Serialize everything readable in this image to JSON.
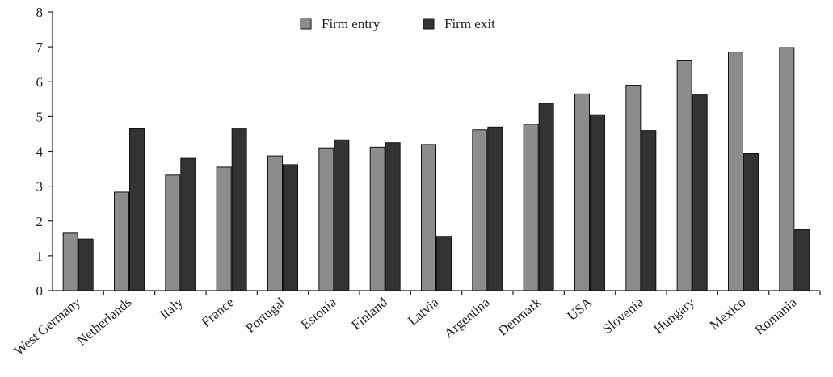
{
  "chart_data": {
    "type": "bar",
    "categories": [
      "West Germany",
      "Netherlands",
      "Italy",
      "France",
      "Portugal",
      "Estonia",
      "Finland",
      "Latvia",
      "Argentina",
      "Denmark",
      "USA",
      "Slovenia",
      "Hungary",
      "Mexico",
      "Romania"
    ],
    "series": [
      {
        "name": "Firm entry",
        "color": "#8c8c8c",
        "values": [
          1.65,
          2.83,
          3.32,
          3.55,
          3.87,
          4.1,
          4.12,
          4.2,
          4.62,
          4.78,
          5.65,
          5.9,
          6.62,
          6.85,
          6.98
        ]
      },
      {
        "name": "Firm exit",
        "color": "#333333",
        "values": [
          1.48,
          4.65,
          3.8,
          4.67,
          3.62,
          4.33,
          4.25,
          1.56,
          4.7,
          5.38,
          5.05,
          4.6,
          5.62,
          3.93,
          1.75
        ]
      }
    ],
    "ylim": [
      0,
      8
    ],
    "yticks": [
      "0",
      "1",
      "2",
      "3",
      "4",
      "5",
      "6",
      "7",
      "8"
    ],
    "grid": false,
    "legend": "top-center"
  }
}
